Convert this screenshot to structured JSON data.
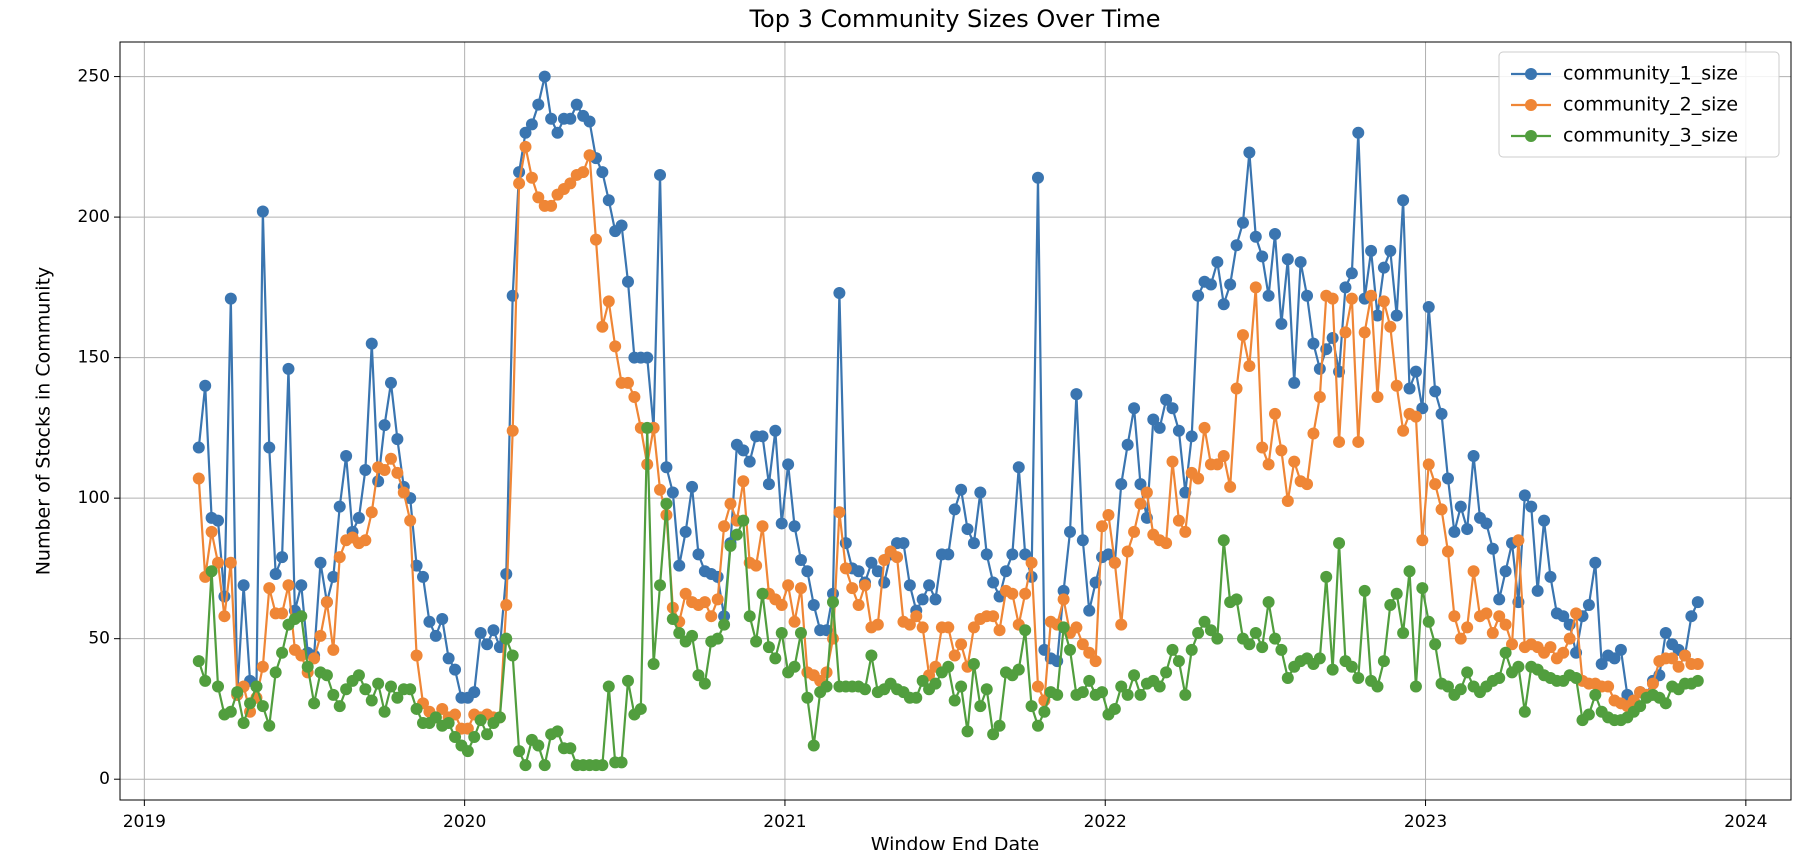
{
  "chart_data": {
    "type": "line",
    "title": "Top 3 Community Sizes Over Time",
    "x_label": "Window End Date",
    "y_label": "Number of Stocks in Community",
    "x": [
      2019.17,
      2019.19,
      2019.21,
      2019.23,
      2019.25,
      2019.27,
      2019.29,
      2019.31,
      2019.33,
      2019.35,
      2019.37,
      2019.39,
      2019.41,
      2019.43,
      2019.45,
      2019.47,
      2019.49,
      2019.51,
      2019.53,
      2019.55,
      2019.57,
      2019.59,
      2019.61,
      2019.63,
      2019.65,
      2019.67,
      2019.69,
      2019.71,
      2019.73,
      2019.75,
      2019.77,
      2019.79,
      2019.81,
      2019.83,
      2019.85,
      2019.87,
      2019.89,
      2019.91,
      2019.93,
      2019.95,
      2019.97,
      2019.99,
      2020.01,
      2020.03,
      2020.05,
      2020.07,
      2020.09,
      2020.11,
      2020.13,
      2020.15,
      2020.17,
      2020.19,
      2020.21,
      2020.23,
      2020.25,
      2020.27,
      2020.29,
      2020.31,
      2020.33,
      2020.35,
      2020.37,
      2020.39,
      2020.41,
      2020.43,
      2020.45,
      2020.47,
      2020.49,
      2020.51,
      2020.53,
      2020.55,
      2020.57,
      2020.59,
      2020.61,
      2020.63,
      2020.65,
      2020.67,
      2020.69,
      2020.71,
      2020.73,
      2020.75,
      2020.77,
      2020.79,
      2020.81,
      2020.83,
      2020.85,
      2020.87,
      2020.89,
      2020.91,
      2020.93,
      2020.95,
      2020.97,
      2020.99,
      2021.01,
      2021.03,
      2021.05,
      2021.07,
      2021.09,
      2021.11,
      2021.13,
      2021.15,
      2021.17,
      2021.19,
      2021.21,
      2021.23,
      2021.25,
      2021.27,
      2021.29,
      2021.31,
      2021.33,
      2021.35,
      2021.37,
      2021.39,
      2021.41,
      2021.43,
      2021.45,
      2021.47,
      2021.49,
      2021.51,
      2021.53,
      2021.55,
      2021.57,
      2021.59,
      2021.61,
      2021.63,
      2021.65,
      2021.67,
      2021.69,
      2021.71,
      2021.73,
      2021.75,
      2021.77,
      2021.79,
      2021.81,
      2021.83,
      2021.85,
      2021.87,
      2021.89,
      2021.91,
      2021.93,
      2021.95,
      2021.97,
      2021.99,
      2022.01,
      2022.03,
      2022.05,
      2022.07,
      2022.09,
      2022.11,
      2022.13,
      2022.15,
      2022.17,
      2022.19,
      2022.21,
      2022.23,
      2022.25,
      2022.27,
      2022.29,
      2022.31,
      2022.33,
      2022.35,
      2022.37,
      2022.39,
      2022.41,
      2022.43,
      2022.45,
      2022.47,
      2022.49,
      2022.51,
      2022.53,
      2022.55,
      2022.57,
      2022.59,
      2022.61,
      2022.63,
      2022.65,
      2022.67,
      2022.69,
      2022.71,
      2022.73,
      2022.75,
      2022.77,
      2022.79,
      2022.81,
      2022.83,
      2022.85,
      2022.87,
      2022.89,
      2022.91,
      2022.93,
      2022.95,
      2022.97,
      2022.99,
      2023.01,
      2023.03,
      2023.05,
      2023.07,
      2023.09,
      2023.11,
      2023.13,
      2023.15,
      2023.17,
      2023.19,
      2023.21,
      2023.23,
      2023.25,
      2023.27,
      2023.29,
      2023.31,
      2023.33,
      2023.35,
      2023.37,
      2023.39,
      2023.41,
      2023.43,
      2023.45,
      2023.47,
      2023.49,
      2023.51,
      2023.53,
      2023.55,
      2023.57,
      2023.59,
      2023.61,
      2023.63,
      2023.65,
      2023.67,
      2023.69,
      2023.71,
      2023.73,
      2023.75,
      2023.77,
      2023.79,
      2023.81,
      2023.83,
      2023.85
    ],
    "series": [
      {
        "name": "community_1_size",
        "color": "#3a75b0",
        "values": [
          118,
          140,
          93,
          92,
          65,
          171,
          30,
          69,
          35,
          33,
          202,
          118,
          73,
          79,
          146,
          60,
          69,
          45,
          44,
          77,
          63,
          72,
          97,
          115,
          88,
          93,
          110,
          155,
          106,
          126,
          141,
          121,
          104,
          100,
          76,
          72,
          56,
          51,
          57,
          43,
          39,
          29,
          29,
          31,
          52,
          48,
          53,
          47,
          73,
          172,
          216,
          230,
          233,
          240,
          250,
          235,
          230,
          235,
          235,
          240,
          236,
          234,
          221,
          216,
          206,
          195,
          197,
          177,
          150,
          150,
          150,
          125,
          215,
          111,
          102,
          76,
          88,
          104,
          80,
          74,
          73,
          72,
          58,
          84,
          119,
          117,
          113,
          122,
          122,
          105,
          124,
          91,
          112,
          90,
          78,
          74,
          62,
          53,
          53,
          66,
          173,
          84,
          75,
          74,
          70,
          77,
          74,
          70,
          80,
          84,
          84,
          69,
          60,
          64,
          69,
          64,
          80,
          80,
          96,
          103,
          89,
          84,
          102,
          80,
          70,
          65,
          74,
          80,
          111,
          80,
          72,
          214,
          46,
          43,
          42,
          67,
          88,
          137,
          85,
          60,
          70,
          79,
          80,
          77,
          105,
          119,
          132,
          105,
          93,
          128,
          125,
          135,
          132,
          124,
          102,
          122,
          172,
          177,
          176,
          184,
          169,
          176,
          190,
          198,
          223,
          193,
          186,
          172,
          194,
          162,
          185,
          141,
          184,
          172,
          155,
          146,
          153,
          157,
          145,
          175,
          180,
          230,
          171,
          188,
          165,
          182,
          188,
          165,
          206,
          139,
          145,
          132,
          168,
          138,
          130,
          107,
          88,
          97,
          89,
          115,
          93,
          91,
          82,
          64,
          74,
          84,
          63,
          101,
          97,
          67,
          92,
          72,
          59,
          58,
          55,
          45,
          58,
          62,
          77,
          41,
          44,
          43,
          46,
          30,
          28,
          31,
          30,
          35,
          37,
          52,
          48,
          46,
          44,
          58,
          63
        ]
      },
      {
        "name": "community_2_size",
        "color": "#ef8636",
        "values": [
          107,
          72,
          88,
          77,
          58,
          77,
          30,
          33,
          24,
          29,
          40,
          68,
          59,
          59,
          69,
          46,
          44,
          38,
          43,
          51,
          63,
          46,
          79,
          85,
          86,
          84,
          85,
          95,
          111,
          110,
          114,
          109,
          102,
          92,
          44,
          27,
          24,
          22,
          25,
          22,
          23,
          18,
          18,
          23,
          22,
          23,
          22,
          22,
          62,
          124,
          212,
          225,
          214,
          207,
          204,
          204,
          208,
          210,
          212,
          215,
          216,
          222,
          192,
          161,
          170,
          154,
          141,
          141,
          136,
          125,
          112,
          125,
          103,
          94,
          61,
          56,
          66,
          63,
          62,
          63,
          58,
          64,
          90,
          98,
          92,
          106,
          77,
          76,
          90,
          66,
          64,
          62,
          69,
          56,
          68,
          38,
          37,
          35,
          38,
          50,
          95,
          75,
          68,
          62,
          69,
          54,
          55,
          78,
          81,
          79,
          56,
          55,
          58,
          54,
          37,
          40,
          54,
          54,
          44,
          48,
          40,
          54,
          57,
          58,
          58,
          53,
          67,
          66,
          55,
          66,
          77,
          33,
          28,
          56,
          55,
          64,
          52,
          54,
          48,
          45,
          42,
          90,
          94,
          77,
          55,
          81,
          88,
          98,
          102,
          87,
          85,
          84,
          113,
          92,
          88,
          109,
          107,
          125,
          112,
          112,
          115,
          104,
          139,
          158,
          147,
          175,
          118,
          112,
          130,
          117,
          99,
          113,
          106,
          105,
          123,
          136,
          172,
          171,
          120,
          159,
          171,
          120,
          159,
          172,
          136,
          170,
          161,
          140,
          124,
          130,
          129,
          85,
          112,
          105,
          96,
          81,
          58,
          50,
          54,
          74,
          58,
          59,
          52,
          58,
          55,
          48,
          85,
          47,
          48,
          47,
          45,
          47,
          43,
          45,
          50,
          59,
          35,
          34,
          34,
          33,
          33,
          28,
          27,
          26,
          28,
          31,
          30,
          34,
          42,
          43,
          43,
          40,
          44,
          41,
          41
        ]
      },
      {
        "name": "community_3_size",
        "color": "#519e3e",
        "values": [
          42,
          35,
          74,
          33,
          23,
          24,
          31,
          20,
          27,
          33,
          26,
          19,
          38,
          45,
          55,
          57,
          58,
          40,
          27,
          38,
          37,
          30,
          26,
          32,
          35,
          37,
          32,
          28,
          34,
          24,
          33,
          29,
          32,
          32,
          25,
          20,
          20,
          22,
          19,
          20,
          15,
          12,
          10,
          15,
          21,
          16,
          20,
          22,
          50,
          44,
          10,
          5,
          14,
          12,
          5,
          16,
          17,
          11,
          11,
          5,
          5,
          5,
          5,
          5,
          33,
          6,
          6,
          35,
          23,
          25,
          125,
          41,
          69,
          98,
          57,
          52,
          49,
          51,
          37,
          34,
          49,
          50,
          55,
          83,
          87,
          92,
          58,
          49,
          66,
          47,
          43,
          52,
          38,
          40,
          52,
          29,
          12,
          31,
          33,
          63,
          33,
          33,
          33,
          33,
          32,
          44,
          31,
          32,
          34,
          32,
          31,
          29,
          29,
          35,
          32,
          34,
          38,
          40,
          28,
          33,
          17,
          41,
          26,
          32,
          16,
          19,
          38,
          37,
          39,
          53,
          26,
          19,
          24,
          31,
          30,
          54,
          46,
          30,
          31,
          35,
          30,
          31,
          23,
          25,
          33,
          30,
          37,
          30,
          34,
          35,
          33,
          38,
          46,
          42,
          30,
          46,
          52,
          56,
          53,
          50,
          85,
          63,
          64,
          50,
          48,
          52,
          47,
          63,
          50,
          46,
          36,
          40,
          42,
          43,
          41,
          43,
          72,
          39,
          84,
          42,
          40,
          36,
          67,
          35,
          33,
          42,
          62,
          66,
          52,
          74,
          33,
          68,
          56,
          48,
          34,
          33,
          30,
          32,
          38,
          33,
          31,
          33,
          35,
          36,
          45,
          38,
          40,
          24,
          40,
          39,
          37,
          36,
          35,
          35,
          37,
          36,
          21,
          23,
          30,
          24,
          22,
          21,
          21,
          22,
          24,
          26,
          29,
          30,
          29,
          27,
          33,
          32,
          34,
          34,
          35
        ]
      }
    ],
    "xlim": [
      2018.924,
      2024.141
    ],
    "xticks": [
      2019,
      2020,
      2021,
      2022,
      2023,
      2024
    ],
    "ylim": [
      -7.4,
      262.3
    ],
    "yticks": [
      0,
      50,
      100,
      150,
      200,
      250
    ],
    "grid": true,
    "legend": "upper right",
    "markers": true
  }
}
